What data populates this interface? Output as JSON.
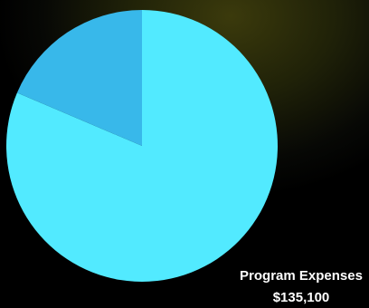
{
  "chart_data": {
    "type": "pie",
    "slices": [
      {
        "label": "Program Expenses",
        "value": 135100,
        "display_value": "$135,100",
        "color": "#52eaff"
      },
      {
        "label": "",
        "value": 30900,
        "display_value": "",
        "color": "#38b8ea"
      }
    ],
    "start_angle_deg": 0,
    "legend": "none",
    "callout_slice": 0
  }
}
